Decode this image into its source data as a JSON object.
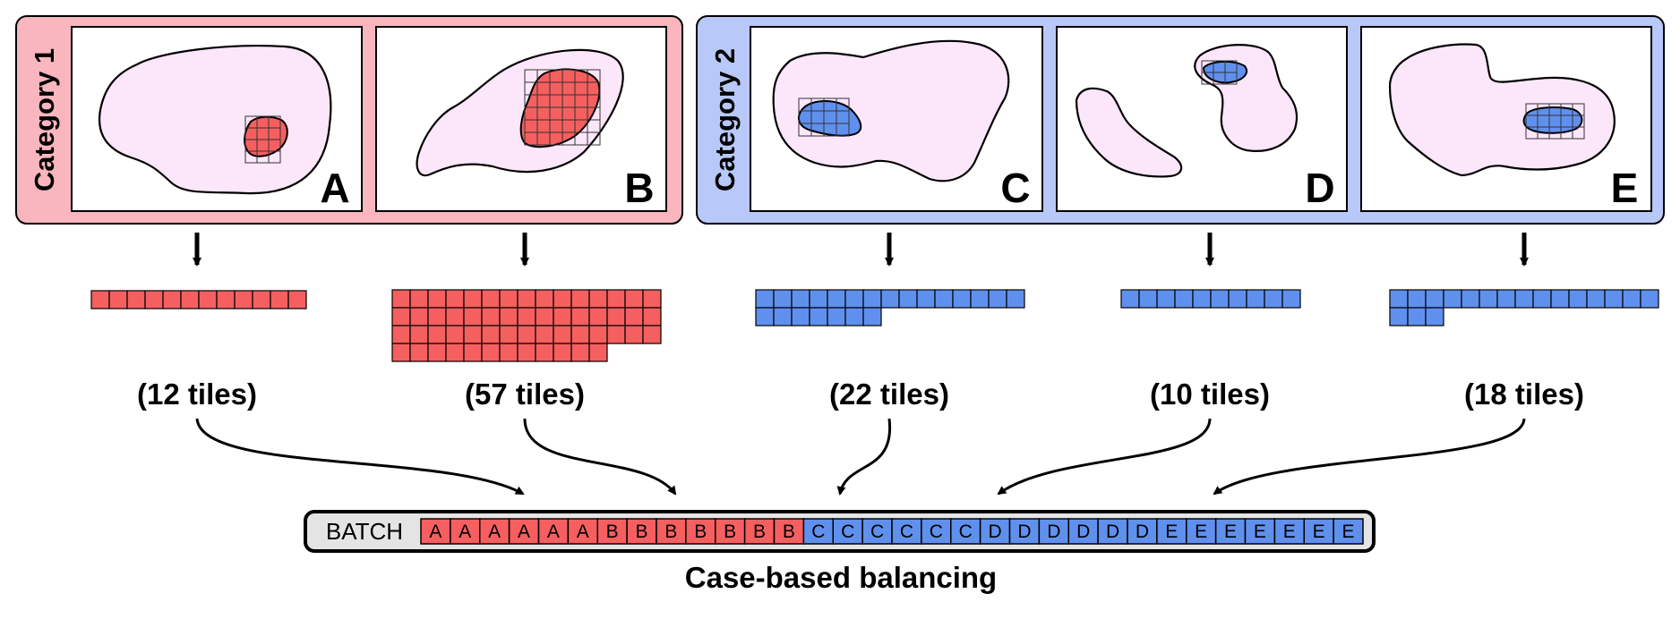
{
  "colors": {
    "category1_bg": "#f9b6bf",
    "category2_bg": "#b8c8f8",
    "category1_tile": "#f65f5f",
    "category2_tile": "#6090ee",
    "tissue": "#fce6f9",
    "batch_label_bg": "#e4e4e4"
  },
  "categories": [
    {
      "label": "Category 1",
      "color": "#f9b6bf",
      "tile_color": "#f65f5f"
    },
    {
      "label": "Category 2",
      "color": "#b8c8f8",
      "tile_color": "#6090ee"
    }
  ],
  "cases": [
    {
      "letter": "A",
      "category": 1,
      "tiles": 12,
      "count_label": "(12 tiles)",
      "batch_slots": 6
    },
    {
      "letter": "B",
      "category": 1,
      "tiles": 57,
      "count_label": "(57 tiles)",
      "batch_slots": 7
    },
    {
      "letter": "C",
      "category": 2,
      "tiles": 22,
      "count_label": "(22 tiles)",
      "batch_slots": 6
    },
    {
      "letter": "D",
      "category": 2,
      "tiles": 10,
      "count_label": "(10 tiles)",
      "batch_slots": 6
    },
    {
      "letter": "E",
      "category": 2,
      "tiles": 18,
      "count_label": "(18 tiles)",
      "batch_slots": 7
    }
  ],
  "batch": {
    "label": "BATCH",
    "sequence": [
      "A",
      "A",
      "A",
      "A",
      "A",
      "A",
      "B",
      "B",
      "B",
      "B",
      "B",
      "B",
      "B",
      "C",
      "C",
      "C",
      "C",
      "C",
      "C",
      "D",
      "D",
      "D",
      "D",
      "D",
      "D",
      "E",
      "E",
      "E",
      "E",
      "E",
      "E",
      "E"
    ]
  },
  "caption": "Case-based balancing"
}
